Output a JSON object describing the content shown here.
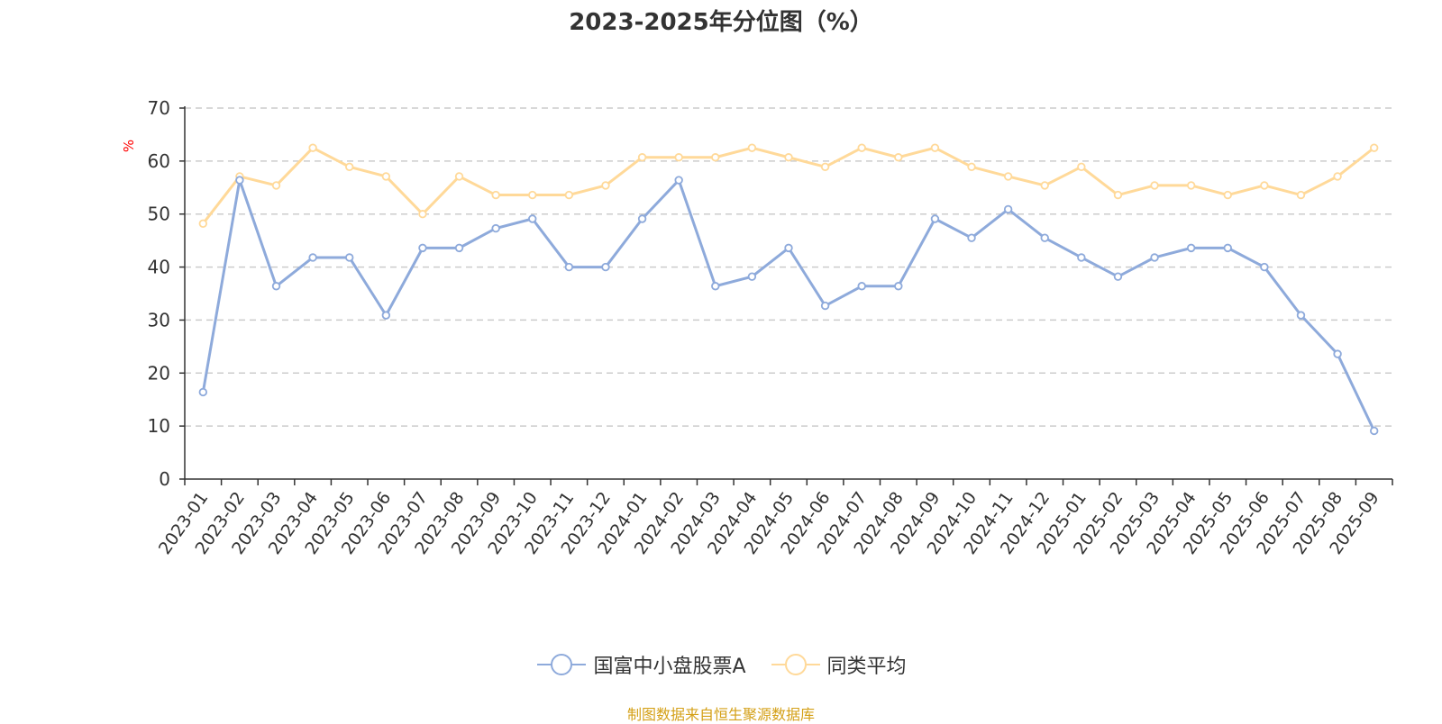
{
  "title": "2023-2025年分位图（%）",
  "source_note": "制图数据来自恒生聚源数据库",
  "chart_data": {
    "type": "line",
    "title": "2023-2025年分位图（%）",
    "ylabel": "%",
    "xlabel": "",
    "ylim": [
      0,
      70
    ],
    "yticks": [
      0,
      10,
      20,
      30,
      40,
      50,
      60,
      70
    ],
    "grid": true,
    "legend_position": "bottom",
    "categories": [
      "2023-01",
      "2023-02",
      "2023-03",
      "2023-04",
      "2023-05",
      "2023-06",
      "2023-07",
      "2023-08",
      "2023-09",
      "2023-10",
      "2023-11",
      "2023-12",
      "2024-01",
      "2024-02",
      "2024-03",
      "2024-04",
      "2024-05",
      "2024-06",
      "2024-07",
      "2024-08",
      "2024-09",
      "2024-10",
      "2024-11",
      "2024-12",
      "2025-01",
      "2025-02",
      "2025-03",
      "2025-04",
      "2025-05",
      "2025-06",
      "2025-07",
      "2025-08",
      "2025-09"
    ],
    "series": [
      {
        "name": "国富中小盘股票A",
        "color": "#8eaadb",
        "values": [
          16.4,
          56.4,
          36.4,
          41.8,
          41.8,
          30.9,
          43.6,
          43.6,
          47.3,
          49.1,
          40.0,
          40.0,
          49.1,
          56.4,
          36.4,
          38.2,
          43.6,
          32.7,
          36.4,
          36.4,
          49.1,
          45.5,
          50.9,
          45.5,
          41.8,
          38.2,
          41.8,
          43.6,
          43.6,
          40.0,
          30.9,
          23.6,
          9.1
        ]
      },
      {
        "name": "同类平均",
        "color": "#ffd999",
        "values": [
          48.2,
          57.1,
          55.4,
          62.5,
          58.9,
          57.1,
          50.0,
          57.1,
          53.6,
          53.6,
          53.6,
          55.4,
          60.7,
          60.7,
          60.7,
          62.5,
          60.7,
          58.9,
          62.5,
          60.7,
          62.5,
          58.9,
          57.1,
          55.4,
          58.9,
          53.6,
          55.4,
          55.4,
          53.6,
          55.4,
          53.6,
          57.1,
          62.5
        ]
      }
    ]
  }
}
